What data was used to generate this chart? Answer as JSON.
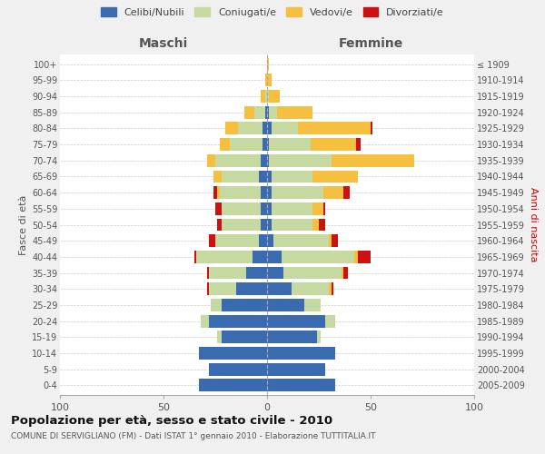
{
  "age_groups": [
    "0-4",
    "5-9",
    "10-14",
    "15-19",
    "20-24",
    "25-29",
    "30-34",
    "35-39",
    "40-44",
    "45-49",
    "50-54",
    "55-59",
    "60-64",
    "65-69",
    "70-74",
    "75-79",
    "80-84",
    "85-89",
    "90-94",
    "95-99",
    "100+"
  ],
  "birth_years": [
    "2005-2009",
    "2000-2004",
    "1995-1999",
    "1990-1994",
    "1985-1989",
    "1980-1984",
    "1975-1979",
    "1970-1974",
    "1965-1969",
    "1960-1964",
    "1955-1959",
    "1950-1954",
    "1945-1949",
    "1940-1944",
    "1935-1939",
    "1930-1934",
    "1925-1929",
    "1920-1924",
    "1915-1919",
    "1910-1914",
    "≤ 1909"
  ],
  "colors": {
    "celibi": "#3a6ab0",
    "coniugati": "#c5d9a0",
    "vedovi": "#f5c040",
    "divorziati": "#cc1111"
  },
  "maschi": {
    "celibi": [
      33,
      28,
      33,
      22,
      28,
      22,
      15,
      10,
      7,
      4,
      3,
      3,
      3,
      4,
      3,
      2,
      2,
      1,
      0,
      0,
      0
    ],
    "coniugati": [
      0,
      0,
      0,
      2,
      4,
      5,
      13,
      18,
      27,
      21,
      19,
      19,
      20,
      18,
      22,
      16,
      12,
      5,
      1,
      0,
      0
    ],
    "vedovi": [
      0,
      0,
      0,
      0,
      0,
      0,
      0,
      0,
      0,
      0,
      0,
      0,
      1,
      4,
      4,
      5,
      6,
      5,
      2,
      1,
      0
    ],
    "divorziati": [
      0,
      0,
      0,
      0,
      0,
      0,
      1,
      1,
      1,
      3,
      2,
      3,
      2,
      0,
      0,
      0,
      0,
      0,
      0,
      0,
      0
    ]
  },
  "femmine": {
    "celibi": [
      33,
      28,
      33,
      24,
      28,
      18,
      12,
      8,
      7,
      3,
      2,
      2,
      2,
      2,
      1,
      1,
      2,
      1,
      0,
      0,
      0
    ],
    "coniugati": [
      0,
      0,
      0,
      2,
      5,
      8,
      18,
      28,
      35,
      27,
      20,
      20,
      25,
      20,
      30,
      20,
      13,
      4,
      1,
      0,
      0
    ],
    "vedovi": [
      0,
      0,
      0,
      0,
      0,
      0,
      1,
      1,
      2,
      1,
      3,
      5,
      10,
      22,
      40,
      22,
      35,
      17,
      5,
      2,
      1
    ],
    "divorziati": [
      0,
      0,
      0,
      0,
      0,
      0,
      1,
      2,
      6,
      3,
      3,
      1,
      3,
      0,
      0,
      2,
      1,
      0,
      0,
      0,
      0
    ]
  },
  "xlim": 100,
  "title": "Popolazione per età, sesso e stato civile - 2010",
  "subtitle": "COMUNE DI SERVIGLIANO (FM) - Dati ISTAT 1° gennaio 2010 - Elaborazione TUTTITALIA.IT",
  "ylabel_left": "Fasce di età",
  "ylabel_right": "Anni di nascita",
  "xlabel_maschi": "Maschi",
  "xlabel_femmine": "Femmine",
  "legend_labels": [
    "Celibi/Nubili",
    "Coniugati/e",
    "Vedovi/e",
    "Divorziati/e"
  ],
  "bg_color": "#f0f0f0",
  "plot_bg": "#ffffff"
}
